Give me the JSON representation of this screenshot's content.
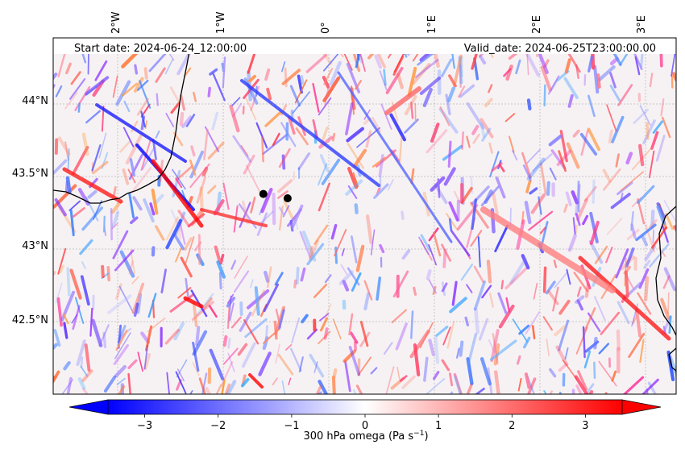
{
  "map": {
    "start_date": "Start date: 2024-06-24_12:00:00",
    "valid_date": "Valid_date: 2024-06-25T23:00:00.00",
    "lon_labels": [
      "2°W",
      "1°W",
      "0°",
      "1°E",
      "2°E",
      "3°E"
    ],
    "lat_labels": [
      "44°N",
      "43.5°N",
      "43°N",
      "42.5°N"
    ],
    "markers": [
      {
        "lon": -0.62,
        "lat": 43.38
      },
      {
        "lon": -0.39,
        "lat": 43.35
      }
    ],
    "colors": {
      "negative": "#0000ff",
      "zero": "#ffffff",
      "positive": "#ff0000",
      "coastline": "#000000"
    }
  },
  "colorbar": {
    "label": "300 hPa omega (Pa s",
    "label_sup": "−1",
    "label_end": ")",
    "ticks": [
      "−3",
      "−2",
      "−1",
      "0",
      "1",
      "2",
      "3"
    ],
    "tick_values": [
      -3,
      -2,
      -1,
      0,
      1,
      2,
      3
    ],
    "vmin": -3.5,
    "vmax": 3.5
  }
}
